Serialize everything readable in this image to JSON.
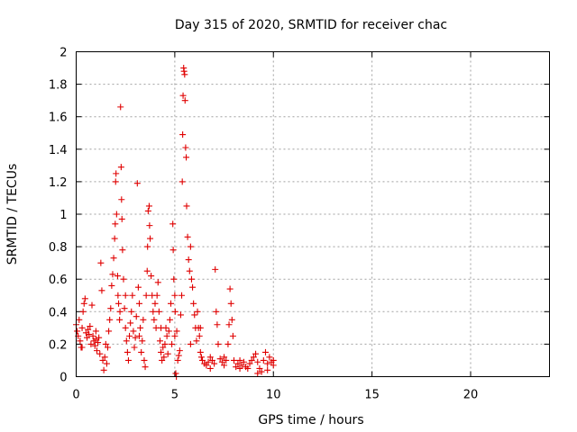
{
  "chart_data": {
    "type": "scatter",
    "title": "Day 315 of 2020, SRMTID for receiver chac",
    "xlabel": "GPS time / hours",
    "ylabel": "SRMTID / TECUs",
    "xlim": [
      0,
      24
    ],
    "ylim": [
      0,
      2
    ],
    "x_ticks": [
      0,
      5,
      10,
      15,
      20
    ],
    "x_tick_labels": [
      "0",
      "5",
      "10",
      "15",
      "20"
    ],
    "y_ticks": [
      0,
      0.2,
      0.4,
      0.6,
      0.8,
      1,
      1.2,
      1.4,
      1.6,
      1.8,
      2
    ],
    "y_tick_labels": [
      "0",
      "0.2",
      "0.4",
      "0.6",
      "0.8",
      "1",
      "1.2",
      "1.4",
      "1.6",
      "1.8",
      "2"
    ],
    "grid": true,
    "marker": "+",
    "color": "#e00000",
    "series": [
      {
        "name": "SRMTID",
        "points": [
          [
            0.0,
            0.32
          ],
          [
            0.05,
            0.28
          ],
          [
            0.1,
            0.25
          ],
          [
            0.15,
            0.35
          ],
          [
            0.2,
            0.22
          ],
          [
            0.25,
            0.18
          ],
          [
            0.3,
            0.3
          ],
          [
            0.35,
            0.4
          ],
          [
            0.4,
            0.45
          ],
          [
            0.45,
            0.48
          ],
          [
            0.5,
            0.27
          ],
          [
            0.55,
            0.24
          ],
          [
            0.6,
            0.29
          ],
          [
            0.65,
            0.26
          ],
          [
            0.7,
            0.31
          ],
          [
            0.75,
            0.2
          ],
          [
            0.8,
            0.44
          ],
          [
            0.85,
            0.25
          ],
          [
            0.9,
            0.22
          ],
          [
            0.95,
            0.19
          ],
          [
            1.0,
            0.23
          ],
          [
            1.05,
            0.16
          ],
          [
            1.1,
            0.21
          ],
          [
            1.15,
            0.24
          ],
          [
            1.2,
            0.14
          ],
          [
            1.25,
            0.7
          ],
          [
            1.3,
            0.53
          ],
          [
            1.35,
            0.1
          ],
          [
            1.4,
            0.04
          ],
          [
            1.45,
            0.12
          ],
          [
            1.5,
            0.2
          ],
          [
            1.55,
            0.08
          ],
          [
            1.6,
            0.18
          ],
          [
            1.65,
            0.28
          ],
          [
            1.7,
            0.35
          ],
          [
            1.75,
            0.42
          ],
          [
            1.8,
            0.56
          ],
          [
            1.85,
            0.63
          ],
          [
            1.9,
            0.73
          ],
          [
            1.95,
            0.85
          ],
          [
            1.98,
            0.94
          ],
          [
            2.0,
            1.2
          ],
          [
            2.02,
            1.25
          ],
          [
            2.05,
            1.0
          ],
          [
            2.1,
            0.62
          ],
          [
            2.12,
            0.5
          ],
          [
            2.15,
            0.45
          ],
          [
            2.2,
            0.35
          ],
          [
            2.22,
            0.4
          ],
          [
            2.25,
            1.66
          ],
          [
            2.28,
            1.29
          ],
          [
            2.3,
            1.09
          ],
          [
            2.32,
            0.97
          ],
          [
            2.35,
            0.78
          ],
          [
            2.4,
            0.6
          ],
          [
            2.45,
            0.42
          ],
          [
            2.5,
            0.3
          ],
          [
            2.55,
            0.22
          ],
          [
            2.6,
            0.15
          ],
          [
            2.65,
            0.1
          ],
          [
            2.7,
            0.25
          ],
          [
            2.75,
            0.33
          ],
          [
            2.8,
            0.4
          ],
          [
            2.85,
            0.5
          ],
          [
            2.9,
            0.28
          ],
          [
            2.95,
            0.18
          ],
          [
            3.0,
            0.24
          ],
          [
            3.05,
            0.37
          ],
          [
            3.1,
            1.19
          ],
          [
            3.15,
            0.55
          ],
          [
            3.2,
            0.45
          ],
          [
            3.25,
            0.3
          ],
          [
            3.3,
            0.15
          ],
          [
            3.35,
            0.22
          ],
          [
            3.4,
            0.35
          ],
          [
            3.45,
            0.1
          ],
          [
            3.5,
            0.06
          ],
          [
            3.55,
            0.5
          ],
          [
            3.6,
            0.65
          ],
          [
            3.62,
            0.8
          ],
          [
            3.65,
            1.02
          ],
          [
            3.7,
            1.05
          ],
          [
            3.72,
            0.93
          ],
          [
            3.75,
            0.85
          ],
          [
            3.8,
            0.62
          ],
          [
            3.85,
            0.5
          ],
          [
            3.9,
            0.4
          ],
          [
            3.95,
            0.35
          ],
          [
            4.0,
            0.45
          ],
          [
            4.05,
            0.3
          ],
          [
            4.1,
            0.5
          ],
          [
            4.15,
            0.58
          ],
          [
            4.2,
            0.4
          ],
          [
            4.25,
            0.22
          ],
          [
            4.3,
            0.15
          ],
          [
            4.35,
            0.1
          ],
          [
            4.4,
            0.18
          ],
          [
            4.45,
            0.12
          ],
          [
            4.5,
            0.2
          ],
          [
            4.55,
            0.3
          ],
          [
            4.6,
            0.25
          ],
          [
            4.65,
            0.14
          ],
          [
            4.7,
            0.28
          ],
          [
            4.75,
            0.35
          ],
          [
            4.8,
            0.45
          ],
          [
            4.85,
            0.2
          ],
          [
            4.9,
            0.94
          ],
          [
            4.92,
            0.78
          ],
          [
            4.95,
            0.6
          ],
          [
            5.0,
            0.5
          ],
          [
            5.02,
            0.4
          ],
          [
            5.05,
            0.02
          ],
          [
            5.08,
            0.0
          ],
          [
            5.1,
            0.28
          ],
          [
            5.15,
            0.1
          ],
          [
            5.2,
            0.13
          ],
          [
            5.25,
            0.16
          ],
          [
            5.3,
            0.38
          ],
          [
            5.35,
            0.5
          ],
          [
            5.38,
            1.2
          ],
          [
            5.4,
            1.49
          ],
          [
            5.42,
            1.73
          ],
          [
            5.45,
            1.9
          ],
          [
            5.47,
            1.88
          ],
          [
            5.5,
            1.86
          ],
          [
            5.52,
            1.7
          ],
          [
            5.55,
            1.41
          ],
          [
            5.58,
            1.35
          ],
          [
            5.6,
            1.05
          ],
          [
            5.65,
            0.86
          ],
          [
            5.7,
            0.72
          ],
          [
            5.75,
            0.65
          ],
          [
            5.8,
            0.8
          ],
          [
            5.85,
            0.6
          ],
          [
            5.9,
            0.55
          ],
          [
            5.95,
            0.45
          ],
          [
            6.0,
            0.38
          ],
          [
            6.05,
            0.3
          ],
          [
            6.1,
            0.22
          ],
          [
            6.15,
            0.4
          ],
          [
            6.2,
            0.3
          ],
          [
            6.25,
            0.25
          ],
          [
            6.3,
            0.15
          ],
          [
            6.35,
            0.12
          ],
          [
            6.4,
            0.1
          ],
          [
            6.5,
            0.08
          ],
          [
            6.6,
            0.07
          ],
          [
            6.7,
            0.09
          ],
          [
            6.8,
            0.12
          ],
          [
            6.9,
            0.1
          ],
          [
            7.0,
            0.08
          ],
          [
            7.05,
            0.66
          ],
          [
            7.1,
            0.4
          ],
          [
            7.15,
            0.32
          ],
          [
            7.2,
            0.2
          ],
          [
            7.3,
            0.11
          ],
          [
            7.4,
            0.09
          ],
          [
            7.5,
            0.07
          ],
          [
            7.6,
            0.1
          ],
          [
            7.7,
            0.2
          ],
          [
            7.75,
            0.32
          ],
          [
            7.8,
            0.54
          ],
          [
            7.85,
            0.45
          ],
          [
            7.9,
            0.35
          ],
          [
            7.95,
            0.25
          ],
          [
            8.0,
            0.1
          ],
          [
            8.1,
            0.06
          ],
          [
            8.2,
            0.08
          ],
          [
            8.3,
            0.05
          ],
          [
            8.4,
            0.07
          ],
          [
            8.5,
            0.09
          ],
          [
            8.6,
            0.06
          ],
          [
            8.7,
            0.05
          ],
          [
            8.8,
            0.08
          ],
          [
            8.9,
            0.1
          ],
          [
            9.0,
            0.12
          ],
          [
            9.1,
            0.14
          ],
          [
            9.2,
            0.09
          ],
          [
            9.3,
            0.05
          ],
          [
            9.4,
            0.03
          ],
          [
            9.5,
            0.1
          ],
          [
            9.6,
            0.15
          ],
          [
            9.7,
            0.08
          ],
          [
            9.8,
            0.12
          ],
          [
            9.9,
            0.09
          ],
          [
            10.0,
            0.07
          ],
          [
            0.3,
            0.18
          ],
          [
            1.0,
            0.28
          ],
          [
            2.5,
            0.5
          ],
          [
            3.2,
            0.25
          ],
          [
            4.3,
            0.3
          ],
          [
            5.0,
            0.25
          ],
          [
            5.8,
            0.2
          ],
          [
            6.3,
            0.3
          ],
          [
            6.8,
            0.05
          ],
          [
            7.5,
            0.12
          ],
          [
            8.3,
            0.1
          ],
          [
            9.2,
            0.02
          ],
          [
            9.7,
            0.04
          ],
          [
            10.0,
            0.1
          ]
        ]
      }
    ]
  }
}
